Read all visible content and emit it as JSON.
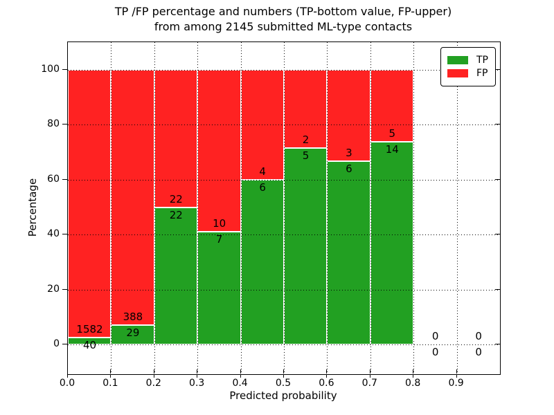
{
  "title": {
    "line1": "TP /FP percentage and numbers (TP-bottom value, FP-upper)",
    "line2": "from among 2145 submitted ML-type contacts"
  },
  "chart_data": {
    "type": "bar",
    "stacked_percentage": true,
    "bin_edges": [
      0.0,
      0.1,
      0.2,
      0.3,
      0.4,
      0.5,
      0.6,
      0.7,
      0.8,
      0.9,
      1.0
    ],
    "series": [
      {
        "name": "TP",
        "color": "#22a022",
        "counts": [
          40,
          29,
          22,
          7,
          6,
          5,
          6,
          14,
          0,
          0
        ]
      },
      {
        "name": "FP",
        "color": "#ff2222",
        "counts": [
          1582,
          388,
          22,
          10,
          4,
          2,
          3,
          5,
          0,
          0
        ]
      }
    ],
    "total_contacts": 2145,
    "xlabel": "Predicted probability",
    "ylabel": "Percentage",
    "x_ticks": [
      "0.0",
      "0.1",
      "0.2",
      "0.3",
      "0.4",
      "0.5",
      "0.6",
      "0.7",
      "0.8",
      "0.9"
    ],
    "y_ticks": [
      0,
      20,
      40,
      60,
      80,
      100
    ],
    "ylim": [
      -11,
      110
    ],
    "xlim": [
      0,
      1
    ],
    "grid": "dotted black, horizontal at y ticks and vertical at x ticks",
    "bar_edge_color": "#ffffff",
    "legend_position": "upper right"
  }
}
